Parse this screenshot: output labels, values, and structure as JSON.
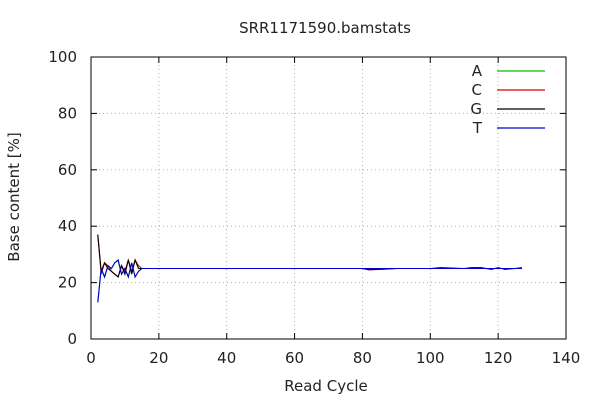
{
  "chart_data": {
    "type": "line",
    "title": "SRR1171590.bamstats",
    "xlabel": "Read Cycle",
    "ylabel": "Base content [%]",
    "xlim": [
      0,
      140
    ],
    "ylim": [
      0,
      100
    ],
    "xticks": [
      0,
      20,
      40,
      60,
      80,
      100,
      120,
      140
    ],
    "yticks": [
      0,
      20,
      40,
      60,
      80,
      100
    ],
    "grid": true,
    "legend_position": "top-right",
    "x": [
      2,
      3,
      4,
      5,
      6,
      7,
      8,
      9,
      10,
      11,
      12,
      13,
      14,
      15,
      16,
      17,
      18,
      20,
      30,
      40,
      50,
      60,
      70,
      80,
      82,
      90,
      100,
      103,
      110,
      112,
      115,
      118,
      120,
      122,
      125,
      127
    ],
    "series": [
      {
        "name": "A",
        "color": "#00c000",
        "values": [
          13,
          25,
          22,
          26,
          25,
          27,
          28,
          23,
          25,
          22,
          27,
          22,
          24,
          25,
          25,
          25,
          25,
          25,
          25,
          25,
          25,
          25,
          25,
          25,
          25,
          25,
          25,
          25,
          25,
          25,
          25,
          25,
          25,
          25,
          25,
          25
        ]
      },
      {
        "name": "C",
        "color": "#e00000",
        "values": [
          37,
          23,
          27,
          26,
          24,
          23,
          22,
          26,
          24,
          28,
          24,
          28,
          26,
          25,
          25,
          25,
          25,
          25,
          25,
          25,
          25,
          25,
          25,
          25,
          24.5,
          25,
          25,
          25,
          25,
          25,
          25,
          25,
          25,
          25,
          25,
          25
        ]
      },
      {
        "name": "G",
        "color": "#000000",
        "values": [
          37,
          24,
          27,
          25,
          24,
          23,
          22,
          26,
          23,
          28,
          23,
          28,
          25,
          25,
          25,
          25,
          25,
          25,
          25,
          25,
          25,
          25,
          25,
          25,
          24.6,
          25,
          25,
          25.3,
          25,
          25.3,
          25.3,
          24.7,
          25.3,
          24.7,
          25,
          25.3
        ]
      },
      {
        "name": "T",
        "color": "#0000cc",
        "values": [
          13,
          25,
          22,
          26,
          25,
          27,
          28,
          23,
          25,
          22,
          27,
          22,
          24,
          25,
          25,
          25,
          25,
          25,
          25,
          25,
          25,
          25,
          25,
          25,
          25,
          25,
          25,
          25,
          25,
          25,
          25,
          25,
          25,
          25,
          25,
          25
        ]
      }
    ]
  }
}
